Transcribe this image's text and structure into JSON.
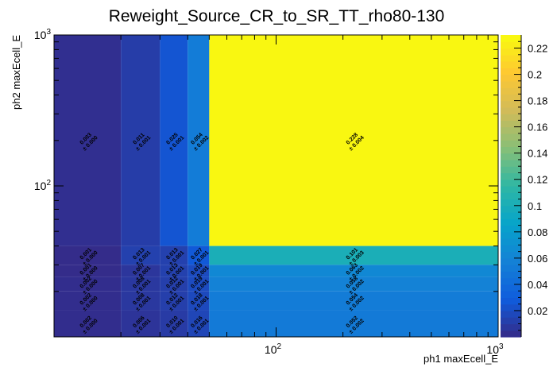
{
  "chart_data": {
    "type": "heatmap",
    "title": "Reweight_Source_CR_to_SR_TT_rho80-130",
    "xlabel": "ph1 maxEcell_E",
    "ylabel": "ph2 maxEcell_E",
    "x_scale": "log",
    "y_scale": "log",
    "xlim": [
      10,
      1000
    ],
    "ylim": [
      10,
      1000
    ],
    "x_ticks": [
      {
        "value": 100,
        "base": "10",
        "exp": "2"
      },
      {
        "value": 1000,
        "base": "10",
        "exp": "3"
      }
    ],
    "y_ticks": [
      {
        "value": 100,
        "base": "10",
        "exp": "2"
      },
      {
        "value": 1000,
        "base": "10",
        "exp": "3"
      }
    ],
    "x_edges": [
      10,
      20,
      30,
      40,
      50,
      1000
    ],
    "y_edges": [
      10,
      15,
      20,
      25,
      30,
      40,
      1000
    ],
    "z_range": [
      0,
      0.23
    ],
    "colorbar_ticks": [
      "0.02",
      "0.04",
      "0.06",
      "0.08",
      "0.1",
      "0.12",
      "0.14",
      "0.16",
      "0.18",
      "0.2",
      "0.22"
    ],
    "cells": [
      {
        "xi": 0,
        "yi": 5,
        "value": "0.003",
        "error": "± 0.000"
      },
      {
        "xi": 1,
        "yi": 5,
        "value": "0.011",
        "error": "± 0.001"
      },
      {
        "xi": 2,
        "yi": 5,
        "value": "0.025",
        "error": "± 0.001"
      },
      {
        "xi": 3,
        "yi": 5,
        "value": "0.054",
        "error": "± 0.002"
      },
      {
        "xi": 4,
        "yi": 5,
        "value": "0.228",
        "error": "± 0.004"
      },
      {
        "xi": 0,
        "yi": 4,
        "value": "0.001",
        "error": "± 0.000"
      },
      {
        "xi": 1,
        "yi": 4,
        "value": "0.013",
        "error": "± 0.001"
      },
      {
        "xi": 2,
        "yi": 4,
        "value": "0.013",
        "error": "± 0.001"
      },
      {
        "xi": 3,
        "yi": 4,
        "value": "0.027",
        "error": "± 0.001"
      },
      {
        "xi": 4,
        "yi": 4,
        "value": "0.101",
        "error": "± 0.003"
      },
      {
        "xi": 0,
        "yi": 3,
        "value": "0.001",
        "error": "± 0.000"
      },
      {
        "xi": 1,
        "yi": 3,
        "value": "0.007",
        "error": "± 0.001"
      },
      {
        "xi": 2,
        "yi": 3,
        "value": "0.013",
        "error": "± 0.001"
      },
      {
        "xi": 3,
        "yi": 3,
        "value": "0.019",
        "error": "± 0.001"
      },
      {
        "xi": 4,
        "yi": 3,
        "value": "0.063",
        "error": "± 0.002"
      },
      {
        "xi": 0,
        "yi": 2,
        "value": "0.002",
        "error": "± 0.000"
      },
      {
        "xi": 1,
        "yi": 2,
        "value": "0.008",
        "error": "± 0.001"
      },
      {
        "xi": 2,
        "yi": 2,
        "value": "0.012",
        "error": "± 0.001"
      },
      {
        "xi": 3,
        "yi": 2,
        "value": "0.019",
        "error": "± 0.001"
      },
      {
        "xi": 4,
        "yi": 2,
        "value": "0.058",
        "error": "± 0.002"
      },
      {
        "xi": 0,
        "yi": 1,
        "value": "0.002",
        "error": "± 0.000"
      },
      {
        "xi": 1,
        "yi": 1,
        "value": "0.008",
        "error": "± 0.001"
      },
      {
        "xi": 2,
        "yi": 1,
        "value": "0.012",
        "error": "± 0.001"
      },
      {
        "xi": 3,
        "yi": 1,
        "value": "0.018",
        "error": "± 0.001"
      },
      {
        "xi": 4,
        "yi": 1,
        "value": "0.054",
        "error": "± 0.002"
      },
      {
        "xi": 0,
        "yi": 0,
        "value": "0.002",
        "error": "± 0.000"
      },
      {
        "xi": 1,
        "yi": 0,
        "value": "0.006",
        "error": "± 0.001"
      },
      {
        "xi": 2,
        "yi": 0,
        "value": "0.010",
        "error": "± 0.001"
      },
      {
        "xi": 3,
        "yi": 0,
        "value": "0.016",
        "error": "± 0.001"
      },
      {
        "xi": 4,
        "yi": 0,
        "value": "0.052",
        "error": "± 0.002"
      }
    ],
    "colors": {
      "frame": "#000000",
      "palette": [
        "#352a87",
        "#0f5cdd",
        "#1481d6",
        "#06a4ca",
        "#2eb7a4",
        "#87bf77",
        "#d1bb59",
        "#fec832",
        "#f9fb0e"
      ]
    }
  }
}
